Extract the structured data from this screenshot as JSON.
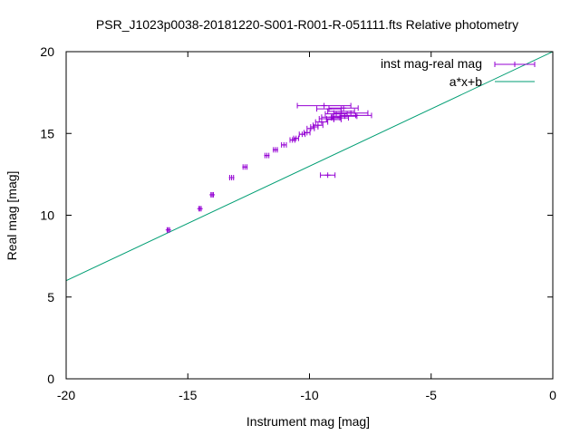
{
  "chart_data": {
    "type": "scatter",
    "title": "PSR_J1023p0038-20181220-S001-R001-R-051111.fts Relative photometry",
    "xlabel": "Instrument mag [mag]",
    "ylabel": "Real mag [mag]",
    "xlim": [
      -20,
      0
    ],
    "ylim": [
      0,
      20
    ],
    "xticks": [
      -20,
      -15,
      -10,
      -5,
      0
    ],
    "yticks": [
      0,
      5,
      10,
      15,
      20
    ],
    "grid": false,
    "legend_position": "top-right",
    "series": [
      {
        "name": "inst mag-real mag",
        "kind": "points-xerror",
        "color": "#9400d3",
        "points": [
          {
            "x": -15.8,
            "y": 9.1,
            "xerr": 0.05
          },
          {
            "x": -14.5,
            "y": 10.4,
            "xerr": 0.05
          },
          {
            "x": -14.0,
            "y": 11.25,
            "xerr": 0.05
          },
          {
            "x": -13.2,
            "y": 12.3,
            "xerr": 0.08
          },
          {
            "x": -12.65,
            "y": 12.95,
            "xerr": 0.08
          },
          {
            "x": -11.75,
            "y": 13.65,
            "xerr": 0.08
          },
          {
            "x": -11.4,
            "y": 14.0,
            "xerr": 0.08
          },
          {
            "x": -11.05,
            "y": 14.3,
            "xerr": 0.1
          },
          {
            "x": -10.7,
            "y": 14.6,
            "xerr": 0.1
          },
          {
            "x": -10.55,
            "y": 14.7,
            "xerr": 0.1
          },
          {
            "x": -10.3,
            "y": 14.95,
            "xerr": 0.12
          },
          {
            "x": -10.1,
            "y": 15.05,
            "xerr": 0.12
          },
          {
            "x": -9.95,
            "y": 15.3,
            "xerr": 0.15
          },
          {
            "x": -9.8,
            "y": 15.4,
            "xerr": 0.15
          },
          {
            "x": -9.65,
            "y": 15.5,
            "xerr": 0.2
          },
          {
            "x": -9.5,
            "y": 15.7,
            "xerr": 0.25
          },
          {
            "x": -9.3,
            "y": 15.9,
            "xerr": 0.3
          },
          {
            "x": -9.1,
            "y": 16.0,
            "xerr": 0.4
          },
          {
            "x": -8.9,
            "y": 16.2,
            "xerr": 0.45
          },
          {
            "x": -8.7,
            "y": 16.35,
            "xerr": 0.55
          },
          {
            "x": -8.55,
            "y": 16.05,
            "xerr": 0.5
          },
          {
            "x": -8.3,
            "y": 16.25,
            "xerr": 0.7
          },
          {
            "x": -8.1,
            "y": 16.1,
            "xerr": 0.65
          },
          {
            "x": -8.75,
            "y": 15.95,
            "xerr": 0.35
          },
          {
            "x": -9.0,
            "y": 15.85,
            "xerr": 0.3
          },
          {
            "x": -9.2,
            "y": 16.5,
            "xerr": 0.5
          },
          {
            "x": -8.6,
            "y": 16.55,
            "xerr": 0.6
          },
          {
            "x": -9.4,
            "y": 16.7,
            "xerr": 1.1
          },
          {
            "x": -9.25,
            "y": 12.45,
            "xerr": 0.3
          }
        ]
      },
      {
        "name": "a*x+b",
        "kind": "line",
        "color": "#009e73",
        "slope": 0.7,
        "intercept": 20.0
      }
    ]
  }
}
